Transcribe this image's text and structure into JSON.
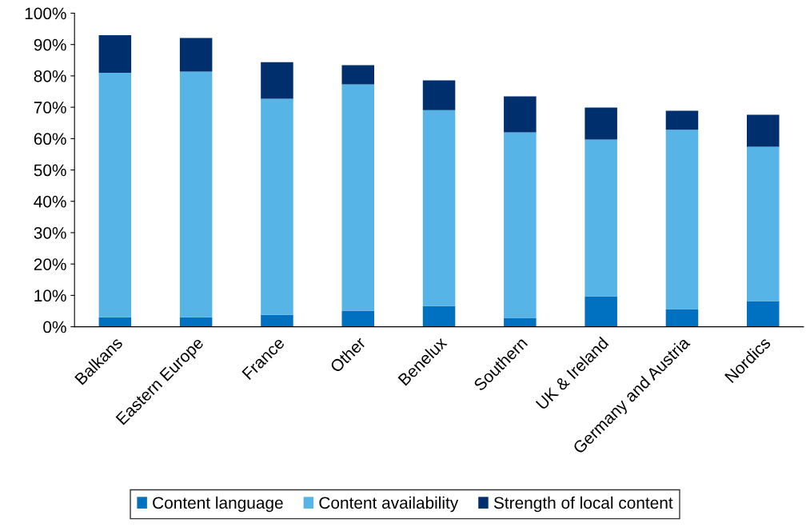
{
  "chart_data": {
    "type": "bar",
    "stacked": true,
    "categories": [
      "Balkans",
      "Eastern Europe",
      "France",
      "Other",
      "Benelux",
      "Southern",
      "UK & Ireland",
      "Germany and Austria",
      "Nordics"
    ],
    "series": [
      {
        "name": "Content language",
        "color": "#0070c0",
        "values": [
          3.0,
          3.0,
          3.8,
          5.1,
          6.6,
          2.8,
          9.7,
          5.6,
          8.2
        ]
      },
      {
        "name": "Content availability",
        "color": "#56b4e6",
        "values": [
          78.0,
          78.4,
          68.9,
          72.2,
          62.5,
          59.2,
          50.0,
          57.2,
          49.2
        ]
      },
      {
        "name": "Strength of local content",
        "color": "#002f6e",
        "values": [
          12.0,
          10.7,
          11.7,
          6.1,
          9.5,
          11.5,
          10.2,
          6.1,
          10.2
        ]
      }
    ],
    "ylim": [
      0,
      100
    ],
    "yticks": [
      {
        "value": 0,
        "label": "0%"
      },
      {
        "value": 10,
        "label": "10%"
      },
      {
        "value": 20,
        "label": "20%"
      },
      {
        "value": 30,
        "label": "30%"
      },
      {
        "value": 40,
        "label": "40%"
      },
      {
        "value": 50,
        "label": "50%"
      },
      {
        "value": 60,
        "label": "60%"
      },
      {
        "value": 70,
        "label": "70%"
      },
      {
        "value": 80,
        "label": "80%"
      },
      {
        "value": 90,
        "label": "90%"
      },
      {
        "value": 100,
        "label": "100%"
      }
    ],
    "grid": false,
    "legend": "bottom"
  }
}
